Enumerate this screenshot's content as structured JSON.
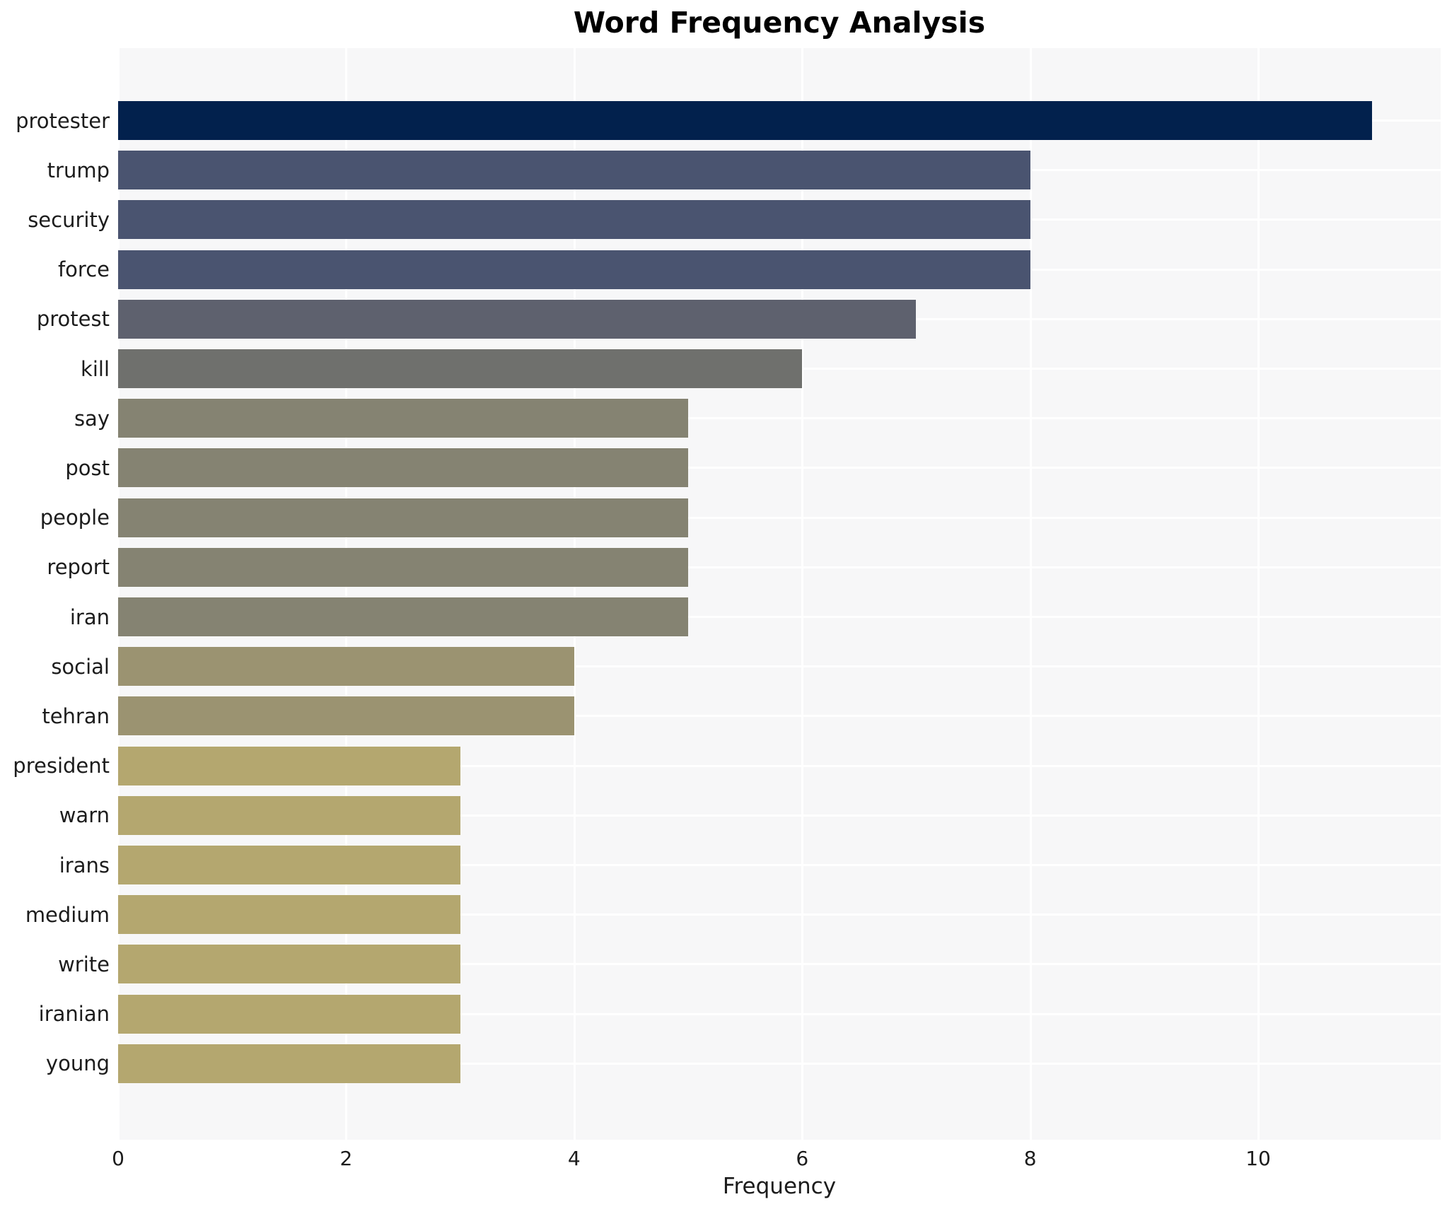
{
  "page": {
    "title": "Word Frequency Analysis"
  },
  "chart_data": {
    "type": "bar",
    "orientation": "horizontal",
    "title": "Word Frequency Analysis",
    "xlabel": "Frequency",
    "ylabel": "",
    "categories": [
      "protester",
      "trump",
      "security",
      "force",
      "protest",
      "kill",
      "say",
      "post",
      "people",
      "report",
      "iran",
      "social",
      "tehran",
      "president",
      "warn",
      "irans",
      "medium",
      "write",
      "iranian",
      "young"
    ],
    "values": [
      11,
      8,
      8,
      8,
      7,
      6,
      5,
      5,
      5,
      5,
      5,
      4,
      4,
      3,
      3,
      3,
      3,
      3,
      3,
      3
    ],
    "bar_colors": [
      "#02214d",
      "#4a5470",
      "#4a5470",
      "#4a5470",
      "#5e616e",
      "#6f706d",
      "#858372",
      "#858372",
      "#858372",
      "#858372",
      "#858372",
      "#9b9371",
      "#9b9371",
      "#b4a76f",
      "#b4a76f",
      "#b4a76f",
      "#b4a76f",
      "#b4a76f",
      "#b4a76f",
      "#b4a76f"
    ],
    "x_ticks": [
      0,
      2,
      4,
      6,
      8,
      10
    ],
    "xlim": [
      0,
      11.6
    ],
    "grid": true,
    "legend": false,
    "plot_bg_color": "#f7f7f8",
    "grid_color": "#ffffff",
    "text_color": "#1c1c1c"
  }
}
